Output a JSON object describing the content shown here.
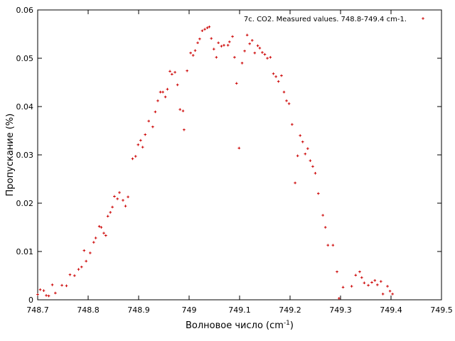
{
  "chart_data": {
    "type": "scatter",
    "title": "",
    "xlabel": "Волновое число (cm",
    "xlabel_sup": "-1",
    "xlabel_tail": ")",
    "ylabel": "Пропускание (%)",
    "xlim": [
      748.7,
      749.5
    ],
    "ylim": [
      0,
      0.06
    ],
    "xticks": [
      "748.7",
      "748.8",
      "748.9",
      "749",
      "749.1",
      "749.2",
      "749.3",
      "749.4",
      "749.5"
    ],
    "yticks": [
      "0",
      "0.01",
      "0.02",
      "0.03",
      "0.04",
      "0.05",
      "0.06"
    ],
    "grid": false,
    "legend_position": "top-right",
    "marker_color": "#cc0000",
    "series": [
      {
        "name": "7c. CO2. Measured values. 748.8-749.4 cm-1.",
        "points": [
          [
            748.7,
            0.0011
          ],
          [
            748.705,
            0.0021
          ],
          [
            748.712,
            0.0019
          ],
          [
            748.717,
            0.0009
          ],
          [
            748.722,
            0.0008
          ],
          [
            748.729,
            0.0031
          ],
          [
            748.735,
            0.0014
          ],
          [
            748.748,
            0.003
          ],
          [
            748.757,
            0.0029
          ],
          [
            748.764,
            0.0052
          ],
          [
            748.773,
            0.005
          ],
          [
            748.781,
            0.0063
          ],
          [
            748.787,
            0.0068
          ],
          [
            748.792,
            0.0102
          ],
          [
            748.796,
            0.008
          ],
          [
            748.804,
            0.0097
          ],
          [
            748.811,
            0.0119
          ],
          [
            748.815,
            0.0128
          ],
          [
            748.822,
            0.0152
          ],
          [
            748.826,
            0.015
          ],
          [
            748.831,
            0.0138
          ],
          [
            748.835,
            0.0133
          ],
          [
            748.839,
            0.0173
          ],
          [
            748.844,
            0.0181
          ],
          [
            748.848,
            0.0192
          ],
          [
            748.852,
            0.0214
          ],
          [
            748.858,
            0.0209
          ],
          [
            748.862,
            0.0222
          ],
          [
            748.869,
            0.0206
          ],
          [
            748.874,
            0.0194
          ],
          [
            748.879,
            0.0213
          ],
          [
            748.888,
            0.0292
          ],
          [
            748.894,
            0.0297
          ],
          [
            748.899,
            0.0321
          ],
          [
            748.904,
            0.033
          ],
          [
            748.908,
            0.0316
          ],
          [
            748.913,
            0.0342
          ],
          [
            748.92,
            0.037
          ],
          [
            748.928,
            0.0358
          ],
          [
            748.933,
            0.0389
          ],
          [
            748.938,
            0.0412
          ],
          [
            748.943,
            0.043
          ],
          [
            748.948,
            0.043
          ],
          [
            748.953,
            0.042
          ],
          [
            748.957,
            0.0436
          ],
          [
            748.962,
            0.0473
          ],
          [
            748.966,
            0.0467
          ],
          [
            748.972,
            0.0471
          ],
          [
            748.977,
            0.0445
          ],
          [
            748.982,
            0.0394
          ],
          [
            748.988,
            0.0391
          ],
          [
            748.99,
            0.0352
          ],
          [
            748.996,
            0.0474
          ],
          [
            749.003,
            0.0511
          ],
          [
            749.008,
            0.0506
          ],
          [
            749.012,
            0.0516
          ],
          [
            749.017,
            0.0532
          ],
          [
            749.021,
            0.054
          ],
          [
            749.026,
            0.0557
          ],
          [
            749.031,
            0.056
          ],
          [
            749.036,
            0.0563
          ],
          [
            749.04,
            0.0565
          ],
          [
            749.044,
            0.0541
          ],
          [
            749.049,
            0.0519
          ],
          [
            749.054,
            0.0502
          ],
          [
            749.058,
            0.0532
          ],
          [
            749.064,
            0.0525
          ],
          [
            749.069,
            0.0527
          ],
          [
            749.077,
            0.0527
          ],
          [
            749.08,
            0.0534
          ],
          [
            749.086,
            0.0545
          ],
          [
            749.09,
            0.0502
          ],
          [
            749.094,
            0.0448
          ],
          [
            749.099,
            0.0314
          ],
          [
            749.105,
            0.049
          ],
          [
            749.11,
            0.0515
          ],
          [
            749.115,
            0.0548
          ],
          [
            749.12,
            0.053
          ],
          [
            749.125,
            0.0537
          ],
          [
            749.13,
            0.0511
          ],
          [
            749.136,
            0.0526
          ],
          [
            749.14,
            0.0521
          ],
          [
            749.145,
            0.0512
          ],
          [
            749.15,
            0.0508
          ],
          [
            749.155,
            0.05
          ],
          [
            749.161,
            0.0502
          ],
          [
            749.167,
            0.0468
          ],
          [
            749.172,
            0.0462
          ],
          [
            749.177,
            0.0452
          ],
          [
            749.183,
            0.0464
          ],
          [
            749.188,
            0.043
          ],
          [
            749.193,
            0.0412
          ],
          [
            749.198,
            0.0406
          ],
          [
            749.204,
            0.0363
          ],
          [
            749.21,
            0.0242
          ],
          [
            749.215,
            0.0298
          ],
          [
            749.22,
            0.034
          ],
          [
            749.225,
            0.0327
          ],
          [
            749.23,
            0.0302
          ],
          [
            749.235,
            0.0313
          ],
          [
            749.24,
            0.0288
          ],
          [
            749.245,
            0.0276
          ],
          [
            749.25,
            0.0262
          ],
          [
            749.256,
            0.022
          ],
          [
            749.265,
            0.0175
          ],
          [
            749.27,
            0.015
          ],
          [
            749.275,
            0.0113
          ],
          [
            749.285,
            0.0113
          ],
          [
            749.293,
            0.0058
          ],
          [
            749.297,
            0.0003
          ],
          [
            749.305,
            0.0026
          ],
          [
            749.322,
            0.0028
          ],
          [
            749.33,
            0.0051
          ],
          [
            749.338,
            0.0058
          ],
          [
            749.342,
            0.0046
          ],
          [
            749.347,
            0.0035
          ],
          [
            749.355,
            0.003
          ],
          [
            749.362,
            0.0036
          ],
          [
            749.368,
            0.004
          ],
          [
            749.373,
            0.0031
          ],
          [
            749.38,
            0.0038
          ],
          [
            749.384,
            0.0012
          ],
          [
            749.393,
            0.0028
          ],
          [
            749.398,
            0.0018
          ],
          [
            749.403,
            0.0012
          ]
        ]
      }
    ]
  }
}
